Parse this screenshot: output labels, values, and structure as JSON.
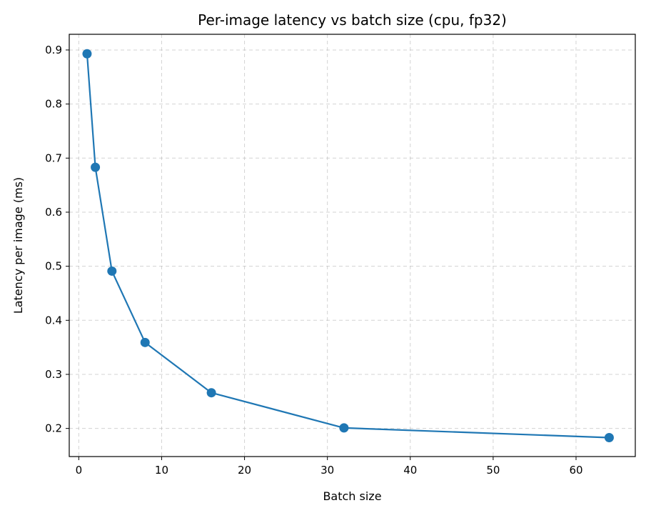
{
  "chart_data": {
    "type": "line",
    "title": "Per-image latency vs batch size (cpu, fp32)",
    "xlabel": "Batch size",
    "ylabel": "Latency per image (ms)",
    "x": [
      1,
      2,
      4,
      8,
      16,
      32,
      64
    ],
    "series": [
      {
        "values": [
          0.893,
          0.683,
          0.491,
          0.359,
          0.266,
          0.201,
          0.183
        ],
        "color": "#1f77b4"
      }
    ],
    "xlim": [
      -1.15,
      67.15
    ],
    "ylim": [
      0.148,
      0.929
    ],
    "xticks": [
      0,
      10,
      20,
      30,
      40,
      50,
      60
    ],
    "yticks": [
      0.2,
      0.3,
      0.4,
      0.5,
      0.6,
      0.7,
      0.8,
      0.9
    ],
    "xtick_labels": [
      "0",
      "10",
      "20",
      "30",
      "40",
      "50",
      "60"
    ],
    "ytick_labels": [
      "0.2",
      "0.3",
      "0.4",
      "0.5",
      "0.6",
      "0.7",
      "0.8",
      "0.9"
    ],
    "grid": true,
    "legend": false,
    "marker": "circle"
  }
}
